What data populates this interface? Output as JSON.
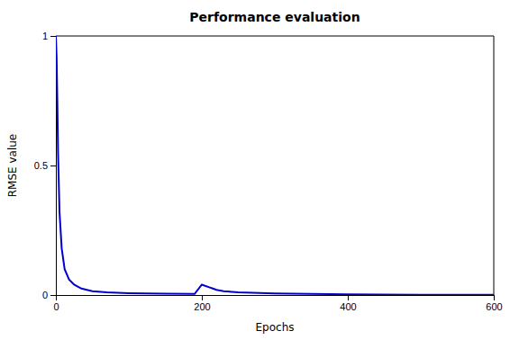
{
  "chart_data": {
    "type": "line",
    "title": "Performance evaluation",
    "xlabel": "Epochs",
    "ylabel": "RMSE value",
    "x": [
      0,
      1,
      2,
      3,
      5,
      8,
      12,
      18,
      25,
      35,
      50,
      70,
      100,
      150,
      190,
      200,
      210,
      215,
      220,
      230,
      250,
      300,
      350,
      400,
      450,
      500,
      550,
      600
    ],
    "values": [
      1.0,
      0.92,
      0.75,
      0.55,
      0.32,
      0.18,
      0.1,
      0.06,
      0.04,
      0.025,
      0.015,
      0.01,
      0.007,
      0.005,
      0.004,
      0.04,
      0.03,
      0.025,
      0.02,
      0.015,
      0.01,
      0.006,
      0.004,
      0.003,
      0.002,
      0.001,
      0.001,
      0.001
    ],
    "color": "#0000cc",
    "xlim": [
      0,
      600
    ],
    "ylim": [
      0,
      1
    ],
    "xticks": [
      0,
      200,
      400,
      600
    ],
    "yticks": [
      0,
      0.5,
      1
    ],
    "grid": false
  }
}
